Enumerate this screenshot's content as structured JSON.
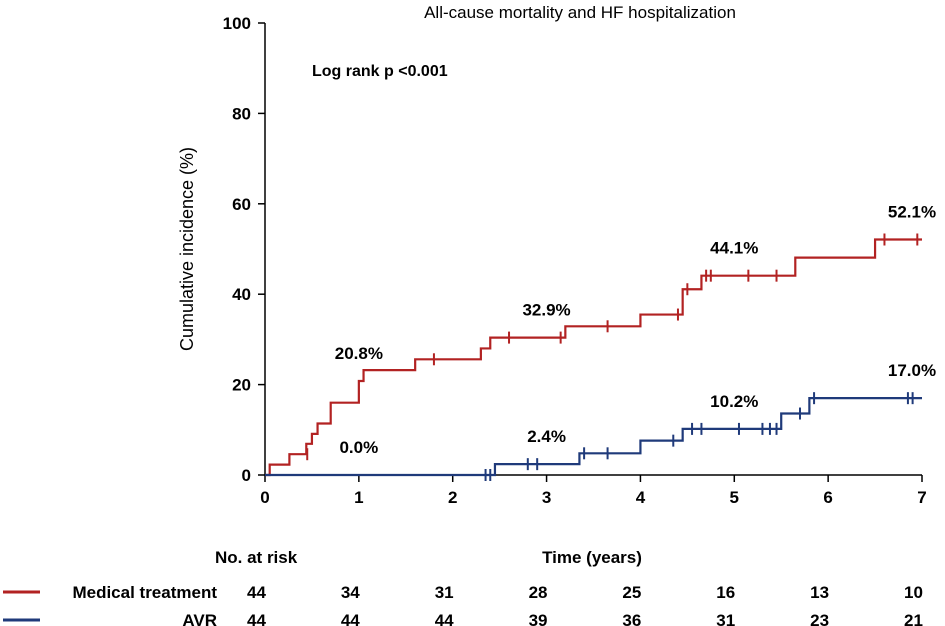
{
  "chart_data": {
    "type": "line",
    "subtype": "kaplan-meier step",
    "title": "All-cause mortality and HF hospitalization",
    "xlabel": "Time (years)",
    "ylabel": "Cumulative incidence (%)",
    "xlim": [
      0,
      7
    ],
    "ylim": [
      0,
      100
    ],
    "xticks": [
      "0",
      "1",
      "2",
      "3",
      "4",
      "5",
      "6",
      "7"
    ],
    "yticks": [
      "0",
      "20",
      "40",
      "60",
      "80",
      "100"
    ],
    "pvalue_text": "Log rank p <0.001",
    "series": [
      {
        "name": "Medical treatment",
        "color": "#b22222",
        "steps": [
          [
            0,
            0
          ],
          [
            0.05,
            2.3
          ],
          [
            0.26,
            4.6
          ],
          [
            0.44,
            6.9
          ],
          [
            0.5,
            9.1
          ],
          [
            0.56,
            11.4
          ],
          [
            0.7,
            16.0
          ],
          [
            1.0,
            20.8
          ],
          [
            1.05,
            23.2
          ],
          [
            1.6,
            25.6
          ],
          [
            2.3,
            28.0
          ],
          [
            2.4,
            30.4
          ],
          [
            3.2,
            32.9
          ],
          [
            4.0,
            35.5
          ],
          [
            4.45,
            41.1
          ],
          [
            4.65,
            44.1
          ],
          [
            5.65,
            48.1
          ],
          [
            6.5,
            52.1
          ],
          [
            7.0,
            52.1
          ]
        ],
        "censors": [
          [
            0.45,
            4.6
          ],
          [
            1.8,
            25.6
          ],
          [
            2.6,
            30.4
          ],
          [
            3.15,
            30.4
          ],
          [
            3.65,
            32.9
          ],
          [
            4.4,
            35.5
          ],
          [
            4.5,
            41.1
          ],
          [
            4.7,
            44.1
          ],
          [
            4.75,
            44.1
          ],
          [
            5.15,
            44.1
          ],
          [
            5.45,
            44.1
          ],
          [
            6.6,
            52.1
          ],
          [
            6.95,
            52.1
          ]
        ],
        "annotations": [
          {
            "x": 1.0,
            "text": "20.8%"
          },
          {
            "x": 3.0,
            "text": "32.9%"
          },
          {
            "x": 5.0,
            "text": "44.1%"
          },
          {
            "x": 7.0,
            "text": "52.1%"
          }
        ]
      },
      {
        "name": "AVR",
        "color": "#1f3a7a",
        "steps": [
          [
            0,
            0
          ],
          [
            2.4,
            0
          ],
          [
            2.45,
            2.4
          ],
          [
            3.35,
            4.8
          ],
          [
            4.0,
            7.6
          ],
          [
            4.45,
            10.2
          ],
          [
            5.5,
            13.6
          ],
          [
            5.8,
            17.0
          ],
          [
            7.0,
            17.0
          ]
        ],
        "censors": [
          [
            2.35,
            0
          ],
          [
            2.4,
            0
          ],
          [
            2.8,
            2.4
          ],
          [
            2.9,
            2.4
          ],
          [
            3.4,
            4.8
          ],
          [
            3.65,
            4.8
          ],
          [
            4.35,
            7.6
          ],
          [
            4.55,
            10.2
          ],
          [
            4.65,
            10.2
          ],
          [
            5.05,
            10.2
          ],
          [
            5.3,
            10.2
          ],
          [
            5.38,
            10.2
          ],
          [
            5.45,
            10.2
          ],
          [
            5.7,
            13.6
          ],
          [
            5.85,
            17.0
          ],
          [
            6.85,
            17.0
          ],
          [
            6.9,
            17.0
          ]
        ],
        "annotations": [
          {
            "x": 1.0,
            "text": "0.0%"
          },
          {
            "x": 3.0,
            "text": "2.4%"
          },
          {
            "x": 5.0,
            "text": "10.2%"
          },
          {
            "x": 7.0,
            "text": "17.0%"
          }
        ]
      }
    ],
    "risk_table": {
      "header": "No. at risk",
      "rows": [
        {
          "name": "Medical treatment",
          "color": "#b22222",
          "values": [
            "44",
            "34",
            "31",
            "28",
            "25",
            "16",
            "13",
            "10"
          ]
        },
        {
          "name": "AVR",
          "color": "#1f3a7a",
          "values": [
            "44",
            "44",
            "44",
            "39",
            "36",
            "31",
            "23",
            "21"
          ]
        }
      ]
    }
  }
}
